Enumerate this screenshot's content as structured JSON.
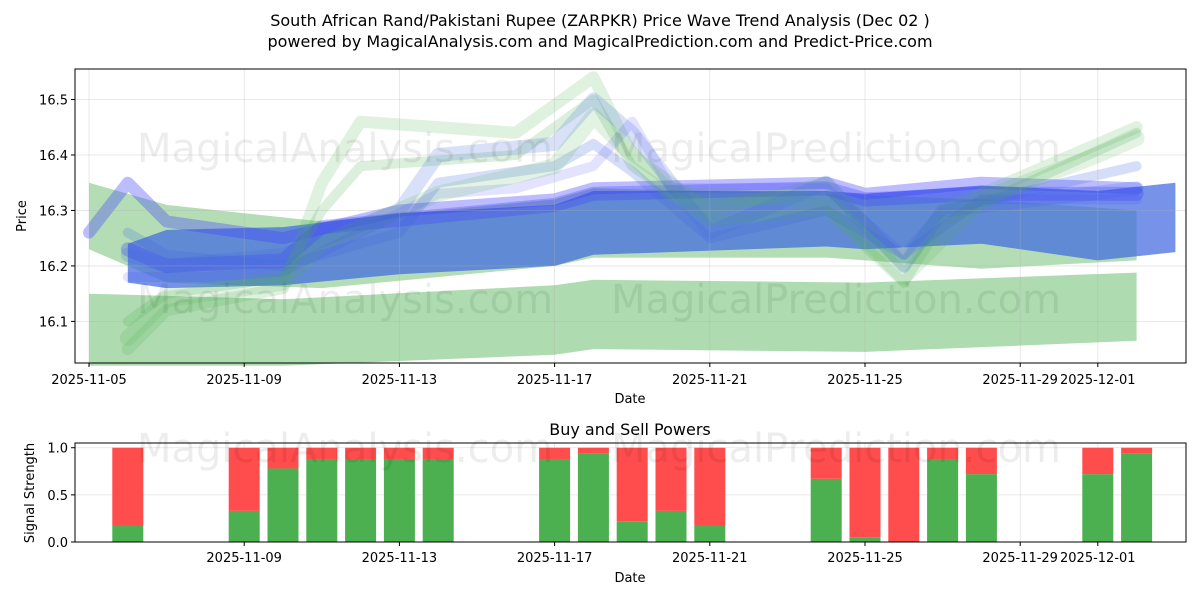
{
  "header": {
    "title_line1": "South African Rand/Pakistani Rupee (ZARPKR) Price Wave Trend Analysis (Dec 02 )",
    "title_line2": "powered by MagicalAnalysis.com and MagicalPrediction.com and Predict-Price.com"
  },
  "watermarks": [
    "MagicalAnalysis.com",
    "MagicalPrediction.com"
  ],
  "colors": {
    "green_band": "#4caf50",
    "blue_band": "#4169e1",
    "bright_blue": "#4040ff",
    "buy": "#4caf50",
    "sell": "#ff4c4c"
  },
  "chart_data": [
    {
      "type": "area",
      "title": "",
      "xlabel": "Date",
      "ylabel": "Price",
      "x_range": [
        "2025-11-05",
        "2025-12-03"
      ],
      "ylim": [
        16.025,
        16.555
      ],
      "x_ticks": [
        "2025-11-05",
        "2025-11-09",
        "2025-11-13",
        "2025-11-17",
        "2025-11-21",
        "2025-11-25",
        "2025-11-29",
        "2025-12-01"
      ],
      "y_ticks": [
        16.1,
        16.2,
        16.3,
        16.4,
        16.5
      ],
      "wave_bands": [
        {
          "name": "green-lower-band",
          "color": "green",
          "x": [
            "2025-11-05",
            "2025-11-10",
            "2025-11-17",
            "2025-11-18",
            "2025-11-25",
            "2025-12-02"
          ],
          "upper": [
            16.15,
            16.14,
            16.165,
            16.175,
            16.17,
            16.188
          ],
          "lower": [
            16.02,
            16.02,
            16.04,
            16.05,
            16.045,
            16.065
          ],
          "opacity": 0.45
        },
        {
          "name": "green-mid-band",
          "color": "green",
          "x": [
            "2025-11-05",
            "2025-11-07",
            "2025-11-11",
            "2025-11-17",
            "2025-11-18",
            "2025-11-24",
            "2025-11-28",
            "2025-12-02"
          ],
          "upper": [
            16.35,
            16.31,
            16.28,
            16.32,
            16.34,
            16.33,
            16.32,
            16.3
          ],
          "lower": [
            16.23,
            16.17,
            16.16,
            16.2,
            16.215,
            16.215,
            16.195,
            16.21
          ],
          "opacity": 0.42
        },
        {
          "name": "blue-main-band",
          "color": "blue",
          "x": [
            "2025-11-06",
            "2025-11-07",
            "2025-11-10",
            "2025-11-13",
            "2025-11-17",
            "2025-11-18",
            "2025-11-24",
            "2025-11-25",
            "2025-11-28",
            "2025-12-01",
            "2025-12-03"
          ],
          "upper": [
            16.24,
            16.265,
            16.27,
            16.295,
            16.31,
            16.335,
            16.335,
            16.33,
            16.345,
            16.335,
            16.35
          ],
          "lower": [
            16.17,
            16.16,
            16.165,
            16.185,
            16.2,
            16.22,
            16.235,
            16.23,
            16.24,
            16.21,
            16.225
          ],
          "opacity": 0.72
        }
      ],
      "wave_lines": [
        {
          "color": "bright_blue",
          "x": [
            "2025-11-05",
            "2025-11-06",
            "2025-11-07",
            "2025-11-10",
            "2025-11-13",
            "2025-11-17",
            "2025-11-18",
            "2025-11-24",
            "2025-11-25",
            "2025-11-28",
            "2025-12-02"
          ],
          "y": [
            16.26,
            16.35,
            16.28,
            16.25,
            16.3,
            16.32,
            16.34,
            16.35,
            16.33,
            16.35,
            16.34
          ],
          "width": 12,
          "opacity": 0.35
        },
        {
          "color": "bright_blue",
          "x": [
            "2025-11-06",
            "2025-11-07",
            "2025-11-10",
            "2025-11-11",
            "2025-11-14",
            "2025-11-17",
            "2025-11-18",
            "2025-11-24",
            "2025-11-25",
            "2025-11-28",
            "2025-12-02"
          ],
          "y": [
            16.23,
            16.2,
            16.21,
            16.27,
            16.29,
            16.31,
            16.33,
            16.34,
            16.32,
            16.33,
            16.33
          ],
          "width": 14,
          "opacity": 0.3
        },
        {
          "color": "green",
          "x": [
            "2025-11-06",
            "2025-11-07",
            "2025-11-10",
            "2025-11-11",
            "2025-11-12",
            "2025-11-16",
            "2025-11-18",
            "2025-11-19",
            "2025-11-21",
            "2025-11-24",
            "2025-11-26",
            "2025-11-27",
            "2025-12-02"
          ],
          "y": [
            16.05,
            16.12,
            16.16,
            16.35,
            16.46,
            16.44,
            16.54,
            16.4,
            16.3,
            16.35,
            16.2,
            16.3,
            16.45
          ],
          "width": 12,
          "opacity": 0.18
        },
        {
          "color": "green",
          "x": [
            "2025-11-06",
            "2025-11-07",
            "2025-11-10",
            "2025-11-11",
            "2025-11-12",
            "2025-11-16",
            "2025-11-18",
            "2025-11-19",
            "2025-11-21",
            "2025-11-24",
            "2025-11-26",
            "2025-11-27",
            "2025-12-02"
          ],
          "y": [
            16.1,
            16.15,
            16.18,
            16.3,
            16.38,
            16.4,
            16.5,
            16.38,
            16.28,
            16.3,
            16.17,
            16.28,
            16.44
          ],
          "width": 10,
          "opacity": 0.2
        },
        {
          "color": "blue",
          "x": [
            "2025-11-06",
            "2025-11-07",
            "2025-11-10",
            "2025-11-13",
            "2025-11-14",
            "2025-11-17",
            "2025-11-18",
            "2025-11-19",
            "2025-11-21",
            "2025-11-24",
            "2025-11-26",
            "2025-11-27",
            "2025-12-02"
          ],
          "y": [
            16.22,
            16.2,
            16.22,
            16.3,
            16.4,
            16.42,
            16.5,
            16.44,
            16.26,
            16.35,
            16.2,
            16.3,
            16.34
          ],
          "width": 14,
          "opacity": 0.2
        },
        {
          "color": "blue",
          "x": [
            "2025-11-06",
            "2025-11-07",
            "2025-11-10",
            "2025-11-13",
            "2025-11-14",
            "2025-11-17",
            "2025-11-18",
            "2025-11-19",
            "2025-11-21",
            "2025-11-24",
            "2025-11-26",
            "2025-11-27",
            "2025-12-02"
          ],
          "y": [
            16.26,
            16.22,
            16.2,
            16.26,
            16.35,
            16.38,
            16.42,
            16.37,
            16.25,
            16.3,
            16.22,
            16.3,
            16.38
          ],
          "width": 10,
          "opacity": 0.22
        },
        {
          "color": "bright_blue",
          "x": [
            "2025-11-06",
            "2025-11-08",
            "2025-11-10",
            "2025-11-12",
            "2025-11-14",
            "2025-11-16",
            "2025-11-18",
            "2025-11-19",
            "2025-11-20",
            "2025-11-23",
            "2025-11-24",
            "2025-11-26",
            "2025-11-28",
            "2025-12-02"
          ],
          "y": [
            16.18,
            16.18,
            16.19,
            16.26,
            16.33,
            16.34,
            16.38,
            16.46,
            16.34,
            16.34,
            16.34,
            16.22,
            16.32,
            16.32
          ],
          "width": 10,
          "opacity": 0.15
        },
        {
          "color": "green",
          "x": [
            "2025-11-06",
            "2025-11-07",
            "2025-11-10",
            "2025-11-11",
            "2025-11-14",
            "2025-11-17",
            "2025-11-18",
            "2025-11-20",
            "2025-11-24",
            "2025-11-26",
            "2025-11-28",
            "2025-12-01",
            "2025-12-02"
          ],
          "y": [
            16.07,
            16.14,
            16.17,
            16.24,
            16.33,
            16.38,
            16.47,
            16.33,
            16.32,
            16.18,
            16.32,
            16.4,
            16.43
          ],
          "width": 16,
          "opacity": 0.16
        }
      ]
    },
    {
      "type": "bar",
      "title": "Buy and Sell Powers",
      "xlabel": "Date",
      "ylabel": "Signal Strength",
      "x_range": [
        "2025-11-05",
        "2025-12-03"
      ],
      "ylim": [
        0,
        1.05
      ],
      "x_ticks": [
        "2025-11-09",
        "2025-11-13",
        "2025-11-17",
        "2025-11-21",
        "2025-11-25",
        "2025-11-29",
        "2025-12-01"
      ],
      "y_ticks": [
        0.0,
        0.5,
        1.0
      ],
      "categories": [
        "2025-11-06",
        "2025-11-09",
        "2025-11-10",
        "2025-11-11",
        "2025-11-12",
        "2025-11-13",
        "2025-11-14",
        "2025-11-17",
        "2025-11-18",
        "2025-11-19",
        "2025-11-20",
        "2025-11-21",
        "2025-11-24",
        "2025-11-25",
        "2025-11-26",
        "2025-11-27",
        "2025-11-28",
        "2025-12-01",
        "2025-12-02"
      ],
      "series": [
        {
          "name": "Buy",
          "color": "buy",
          "values": [
            0.17,
            0.33,
            0.78,
            0.88,
            0.88,
            0.88,
            0.88,
            0.88,
            0.94,
            0.22,
            0.33,
            0.17,
            0.67,
            0.05,
            0.0,
            0.88,
            0.72,
            0.72,
            0.94
          ]
        },
        {
          "name": "Sell",
          "color": "sell",
          "values": [
            0.83,
            0.67,
            0.22,
            0.12,
            0.12,
            0.12,
            0.12,
            0.12,
            0.06,
            0.78,
            0.67,
            0.83,
            0.33,
            0.95,
            1.0,
            0.12,
            0.28,
            0.28,
            0.06
          ]
        }
      ]
    }
  ]
}
